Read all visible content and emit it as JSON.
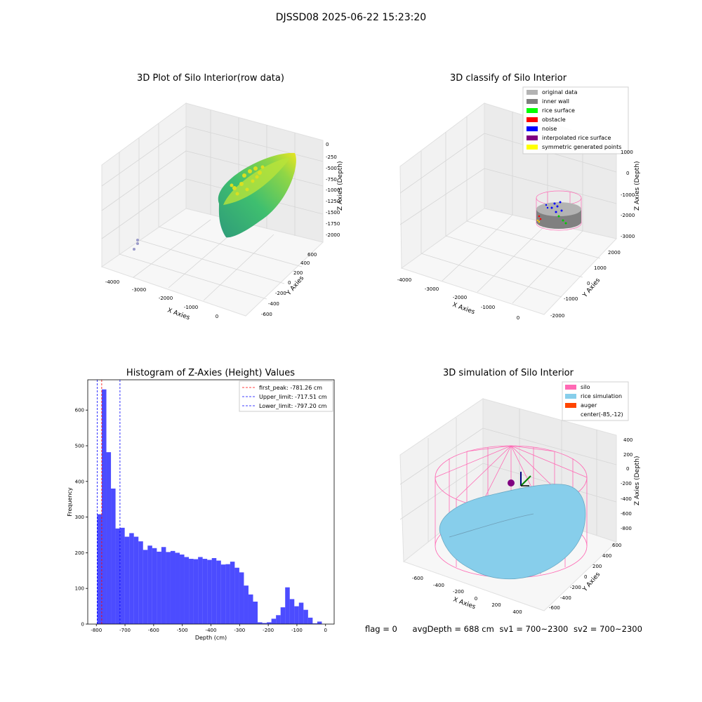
{
  "figure": {
    "title": "DJSSD08 2025-06-22 15:23:20",
    "footer": {
      "flag": "flag = 0",
      "avg_depth": "avgDepth = 688 cm",
      "sv1": "sv1 = 700~2300",
      "sv2": "sv2 = 700~2300"
    }
  },
  "chart_data": [
    {
      "type": "scatter",
      "title": "3D Plot of Silo Interior(row data)",
      "xlabel": "X Axies",
      "ylabel": "Y Axies",
      "zlabel": "Z Axies (Depth)",
      "x_ticks": [
        "-4000",
        "-3000",
        "-2000",
        "-1000",
        "0"
      ],
      "y_ticks": [
        "-600",
        "-400",
        "-200",
        "0",
        "200",
        "400",
        "600"
      ],
      "z_ticks": [
        "0",
        "-250",
        "-500",
        "-750",
        "-1000",
        "-1250",
        "-1500",
        "-1750",
        "-2000"
      ],
      "colormap": [
        "#2e9b7a",
        "#3fbf6f",
        "#8fd646",
        "#f0e622"
      ]
    },
    {
      "type": "scatter",
      "title": "3D classify of Silo Interior",
      "xlabel": "X Axies",
      "ylabel": "Y Axies",
      "zlabel": "Z Axies (Depth)",
      "x_ticks": [
        "-4000",
        "-3000",
        "-2000",
        "-1000",
        "0"
      ],
      "y_ticks": [
        "-2000",
        "-1000",
        "0",
        "1000",
        "2000"
      ],
      "z_ticks": [
        "1000",
        "0",
        "-1000",
        "-2000",
        "-3000"
      ],
      "legend": [
        {
          "label": "original data",
          "color": "#b3b3b3"
        },
        {
          "label": "inner wall",
          "color": "#808080"
        },
        {
          "label": "rice surface",
          "color": "#00ff00"
        },
        {
          "label": "obstacle",
          "color": "#ff0000"
        },
        {
          "label": "noise",
          "color": "#0000ff"
        },
        {
          "label": "interpolated rice surface",
          "color": "#800080"
        },
        {
          "label": "symmetric generated points",
          "color": "#ffff00"
        }
      ]
    },
    {
      "type": "bar",
      "title": "Histogram of Z-Axies (Height) Values",
      "xlabel": "Depth (cm)",
      "ylabel": "Frequency",
      "xlim": [
        -830,
        30
      ],
      "ylim": [
        0,
        685
      ],
      "x_ticks": [
        -800,
        -700,
        -600,
        -500,
        -400,
        -300,
        -200,
        -100,
        0
      ],
      "y_ticks": [
        0,
        100,
        200,
        300,
        400,
        500,
        600
      ],
      "bin_width": 16,
      "bin_starts": [
        -797,
        -781,
        -765,
        -749,
        -733,
        -717,
        -701,
        -685,
        -669,
        -653,
        -637,
        -621,
        -605,
        -589,
        -573,
        -557,
        -541,
        -525,
        -509,
        -493,
        -477,
        -461,
        -445,
        -429,
        -413,
        -397,
        -381,
        -365,
        -349,
        -333,
        -317,
        -301,
        -285,
        -269,
        -253,
        -237,
        -221,
        -205,
        -189,
        -173,
        -157,
        -141,
        -125,
        -109,
        -93,
        -77,
        -61,
        -45,
        -29,
        -13
      ],
      "values": [
        308,
        658,
        482,
        380,
        268,
        270,
        245,
        255,
        245,
        232,
        208,
        220,
        213,
        203,
        216,
        202,
        205,
        200,
        195,
        188,
        183,
        182,
        188,
        183,
        180,
        185,
        178,
        167,
        168,
        175,
        158,
        145,
        108,
        83,
        63,
        5,
        3,
        5,
        15,
        25,
        47,
        103,
        70,
        50,
        60,
        40,
        18,
        2,
        7,
        0
      ],
      "bar_color": "#0000ff",
      "bar_opacity": 0.7,
      "reference_lines": [
        {
          "label": "first_peak: -781.26 cm",
          "value": -781.26,
          "color": "#ff0000"
        },
        {
          "label": "Upper_limit: -717.51 cm",
          "value": -717.51,
          "color": "#0000ff"
        },
        {
          "label": "Lower_limit: -797.20 cm",
          "value": -797.2,
          "color": "#0000ff"
        }
      ]
    },
    {
      "type": "scatter",
      "title": "3D simulation of Silo Interior",
      "xlabel": "X Axies",
      "ylabel": "Y Axies",
      "zlabel": "Z Axies (Depth)",
      "x_ticks": [
        "-600",
        "-400",
        "-200",
        "0",
        "200",
        "400"
      ],
      "y_ticks": [
        "-600",
        "-400",
        "-200",
        "0",
        "200",
        "400",
        "600"
      ],
      "z_ticks": [
        "400",
        "200",
        "0",
        "-200",
        "-400",
        "-600",
        "-800"
      ],
      "legend": [
        {
          "label": "silo",
          "color": "#ff69b4"
        },
        {
          "label": "rice simulation",
          "color": "#87ceeb"
        },
        {
          "label": "auger",
          "color": "#ff4500"
        },
        {
          "label": "center(-85,-12)",
          "color": "none"
        }
      ]
    }
  ]
}
